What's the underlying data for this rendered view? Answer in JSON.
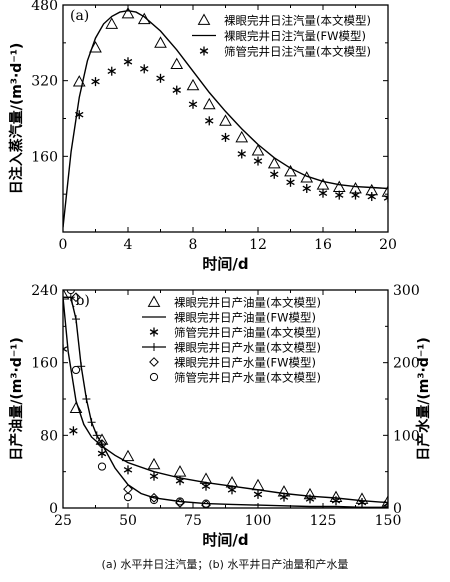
{
  "caption": "(a) 水平井日注汽量；(b) 水平井日产油量和产水量",
  "chart_data": [
    {
      "type": "scatter",
      "panel_label": "(a)",
      "xlabel": "时间/d",
      "ylabel": "日注入蒸汽量/(m³·d⁻¹)",
      "xlim": [
        0,
        20
      ],
      "ylim": [
        0,
        480
      ],
      "xticks": [
        0,
        4,
        8,
        12,
        16,
        20
      ],
      "yticks": [
        160,
        320,
        480
      ],
      "legend_position": "top-right",
      "series": [
        {
          "name": "裸眼完井日注汽量(本文模型)",
          "marker": "triangle",
          "x": [
            1,
            2,
            3,
            4,
            5,
            6,
            7,
            8,
            9,
            10,
            11,
            12,
            13,
            14,
            15,
            16,
            17,
            18,
            19,
            20
          ],
          "y": [
            318,
            390,
            440,
            462,
            450,
            400,
            355,
            310,
            270,
            235,
            200,
            172,
            145,
            128,
            115,
            100,
            95,
            92,
            88,
            85
          ]
        },
        {
          "name": "裸眼完井日注汽量(FW模型)",
          "marker": "line",
          "x": [
            0,
            0.5,
            1,
            1.5,
            2,
            2.5,
            3,
            3.5,
            4,
            4.5,
            5,
            6,
            7,
            8,
            9,
            10,
            11,
            12,
            13,
            14,
            15,
            16,
            17,
            18,
            19,
            20
          ],
          "y": [
            10,
            170,
            285,
            362,
            410,
            440,
            456,
            465,
            468,
            465,
            455,
            425,
            385,
            340,
            295,
            255,
            218,
            185,
            157,
            135,
            118,
            107,
            100,
            96,
            94,
            92
          ]
        },
        {
          "name": "筛管完井日注汽量(本文模型)",
          "marker": "asterisk",
          "x": [
            1,
            2,
            3,
            4,
            5,
            6,
            7,
            8,
            9,
            10,
            11,
            12,
            13,
            14,
            15,
            16,
            17,
            18,
            19,
            20
          ],
          "y": [
            248,
            318,
            340,
            360,
            345,
            325,
            300,
            270,
            235,
            200,
            165,
            150,
            122,
            105,
            92,
            82,
            78,
            78,
            75,
            72
          ]
        }
      ]
    },
    {
      "type": "scatter",
      "panel_label": "(b)",
      "xlabel": "时间/d",
      "ylabel_left": "日产油量/(m³·d⁻¹)",
      "ylabel_right": "日产水量/(m³·d⁻¹)",
      "xlim": [
        25,
        150
      ],
      "ylim_left": [
        0,
        240
      ],
      "ylim_right": [
        0,
        300
      ],
      "xticks": [
        25,
        50,
        75,
        100,
        125,
        150
      ],
      "yticks_left": [
        0,
        80,
        160,
        240
      ],
      "yticks_right": [
        0,
        100,
        200,
        300
      ],
      "legend_position": "top-right",
      "series": [
        {
          "name": "裸眼完井日产油量(本文模型)",
          "marker": "triangle",
          "axis": "left",
          "x": [
            25,
            30,
            40,
            50,
            60,
            70,
            80,
            90,
            100,
            110,
            120,
            130,
            140,
            150
          ],
          "y": [
            235,
            110,
            75,
            57,
            48,
            40,
            32,
            28,
            25,
            18,
            15,
            12,
            10,
            7
          ]
        },
        {
          "name": "裸眼完井日产油量(FW模型)",
          "marker": "line",
          "axis": "left",
          "x": [
            25,
            27,
            30,
            33,
            36,
            40,
            45,
            50,
            60,
            70,
            80,
            90,
            100,
            110,
            120,
            130,
            140,
            150
          ],
          "y": [
            232,
            172,
            118,
            92,
            78,
            68,
            58,
            50,
            40,
            33,
            28,
            24,
            20,
            16,
            13,
            11,
            8,
            6
          ]
        },
        {
          "name": "筛管完井日产油量(本文模型)",
          "marker": "asterisk",
          "axis": "left",
          "x": [
            25,
            29,
            40,
            50,
            60,
            70,
            80,
            90,
            100,
            110,
            120,
            130,
            140,
            150
          ],
          "y": [
            175,
            85,
            60,
            42,
            35,
            30,
            24,
            20,
            15,
            12,
            10,
            8,
            6,
            5
          ]
        },
        {
          "name": "裸眼完井日产水量(本文模型)",
          "marker": "line-plus",
          "axis": "right",
          "x": [
            25,
            28,
            30,
            32,
            34,
            36,
            38,
            40,
            45,
            50,
            55,
            60,
            70,
            80,
            90,
            100,
            110,
            120,
            130,
            140,
            150
          ],
          "y": [
            290,
            290,
            260,
            195,
            150,
            118,
            100,
            88,
            55,
            32,
            20,
            14,
            9,
            6,
            5,
            4,
            3,
            2,
            2,
            1,
            1
          ]
        },
        {
          "name": "裸眼完井日产水量(FW模型)",
          "marker": "diamond",
          "axis": "right",
          "x": [
            30,
            40,
            50,
            60,
            70,
            80
          ],
          "y": [
            290,
            88,
            26,
            14,
            7,
            4
          ]
        },
        {
          "name": "筛管完井日产水量(本文模型)",
          "marker": "circle",
          "axis": "right",
          "x": [
            28,
            30,
            40,
            50,
            60,
            70,
            80
          ],
          "y": [
            300,
            190,
            57,
            15,
            11,
            9,
            6
          ]
        }
      ]
    }
  ]
}
